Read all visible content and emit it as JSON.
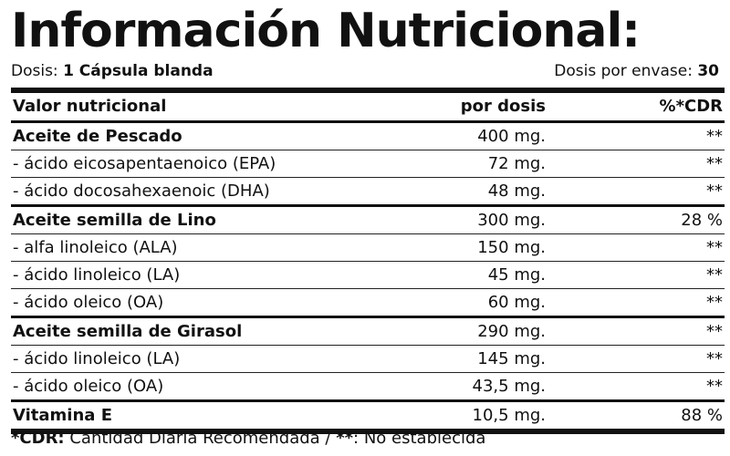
{
  "title": "Información Nutricional:",
  "dose": {
    "label": "Dosis:",
    "value": "1 Cápsula blanda",
    "per_container_label": "Dosis por envase:",
    "per_container_value": "30"
  },
  "table": {
    "headers": {
      "name": "Valor nutricional",
      "dose": "por dosis",
      "cdr": "%*CDR"
    },
    "rows": [
      {
        "name": "Aceite de Pescado",
        "dose": "400 mg.",
        "cdr": "**"
      },
      {
        "name": "- ácido eicosapentaenoico (EPA)",
        "dose": "72 mg.",
        "cdr": "**"
      },
      {
        "name": "- ácido docosahexaenoic (DHA)",
        "dose": "48 mg.",
        "cdr": "**"
      },
      {
        "name": "Aceite semilla de Lino",
        "dose": "300 mg.",
        "cdr": "28 %"
      },
      {
        "name": "- alfa linoleico (ALA)",
        "dose": "150 mg.",
        "cdr": "**"
      },
      {
        "name": "- ácido linoleico (LA)",
        "dose": "45 mg.",
        "cdr": "**"
      },
      {
        "name": "- ácido oleico (OA)",
        "dose": "60 mg.",
        "cdr": "**"
      },
      {
        "name": "Aceite semilla de Girasol",
        "dose": "290 mg.",
        "cdr": "**"
      },
      {
        "name": "- ácido linoleico (LA)",
        "dose": "145 mg.",
        "cdr": "**"
      },
      {
        "name": "- ácido oleico (OA)",
        "dose": "43,5 mg.",
        "cdr": "**"
      },
      {
        "name": "Vitamina E",
        "dose": "10,5 mg.",
        "cdr": "88 %"
      }
    ]
  },
  "footer": {
    "cdr_label": "*CDR:",
    "cdr_text": "Cantidad Diaria Recomendada /",
    "ne_label": "**",
    "ne_text": ": No establecida"
  }
}
